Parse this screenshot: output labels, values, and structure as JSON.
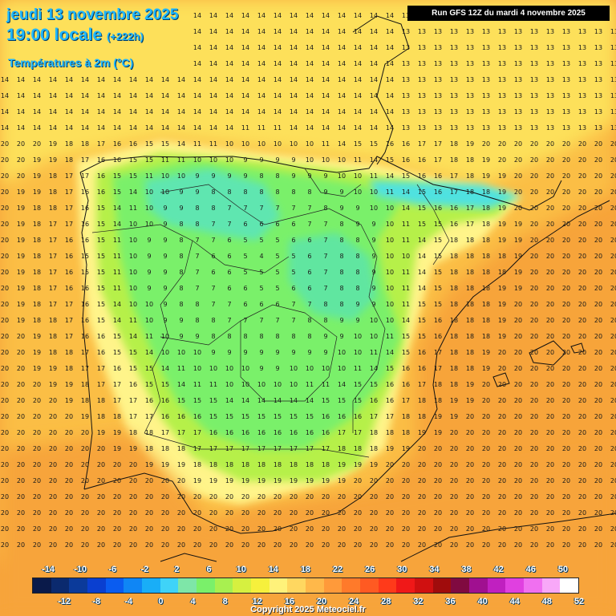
{
  "header": {
    "date_line": "jeudi 13 novembre 2025",
    "time_line": "19:00 locale",
    "lead_time": "(+222h)",
    "variable": "Températures à 2m (°C)",
    "run_info": "Run GFS 12Z du mardi 4 novembre 2025"
  },
  "legend": {
    "top_labels": [
      "-14",
      "-10",
      "-6",
      "-2",
      "2",
      "6",
      "10",
      "14",
      "18",
      "22",
      "26",
      "30",
      "34",
      "38",
      "42",
      "46",
      "50"
    ],
    "bottom_labels": [
      "-12",
      "-8",
      "-4",
      "0",
      "4",
      "8",
      "12",
      "16",
      "20",
      "24",
      "28",
      "32",
      "36",
      "40",
      "44",
      "48",
      "52"
    ],
    "colors": [
      "#0a1a4a",
      "#0b2a6e",
      "#0b3a9a",
      "#0a3fd0",
      "#0a5cf0",
      "#0f86f5",
      "#19aef7",
      "#3fd3f8",
      "#7ee6a8",
      "#7af06a",
      "#a8f050",
      "#d6f040",
      "#f6f03c",
      "#fff27a",
      "#ffd760",
      "#ffb84a",
      "#ff9a3a",
      "#ff7a2a",
      "#ff5a22",
      "#ff3a1a",
      "#f01818",
      "#d01010",
      "#a00c0c",
      "#800a40",
      "#a01090",
      "#c020c0",
      "#e040e0",
      "#f070f0",
      "#f8a8f8",
      "#ffffff"
    ]
  },
  "copyright": "Copyright 2025 Meteociel.fr",
  "map": {
    "sample_values": {
      "north_coast": [
        14,
        14,
        15,
        15,
        14
      ],
      "interior_meseta": [
        4,
        5,
        6,
        7,
        8,
        9
      ],
      "mediterranean_coast": [
        17,
        18,
        19,
        20
      ],
      "atlantic_west": [
        15,
        16,
        17
      ]
    }
  }
}
